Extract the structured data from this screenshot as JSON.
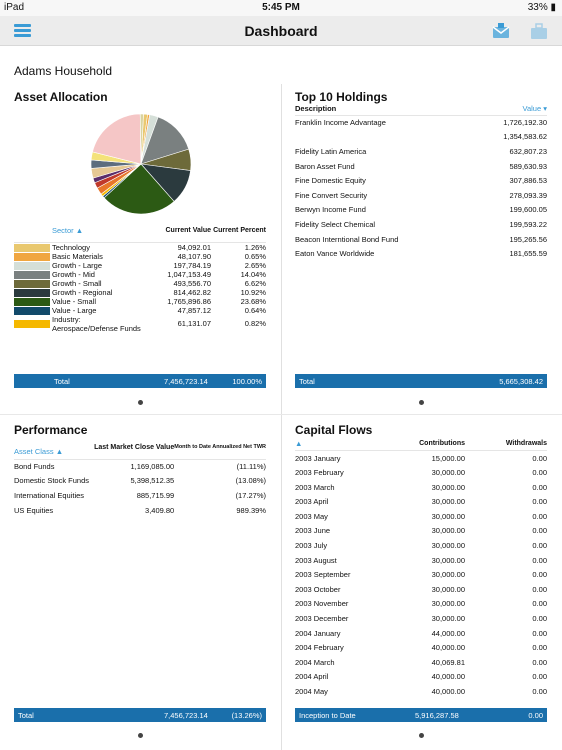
{
  "status": {
    "device": "iPad",
    "time": "5:45 PM",
    "battery": "33%"
  },
  "nav": {
    "title": "Dashboard"
  },
  "household": "Adams Household",
  "asset_allocation": {
    "title": "Asset Allocation",
    "col_sector": "Sector",
    "col_value": "Current Value",
    "col_percent": "Current Percent",
    "rows": [
      {
        "sector": "Technology",
        "value": "94,092.01",
        "percent": "1.26%",
        "color": "#e9c86f"
      },
      {
        "sector": "Basic Materials",
        "value": "48,107.90",
        "percent": "0.65%",
        "color": "#f0a640"
      },
      {
        "sector": "Growth - Large",
        "value": "197,784.19",
        "percent": "2.65%",
        "color": "#d5dfd8"
      },
      {
        "sector": "Growth - Mid",
        "value": "1,047,153.49",
        "percent": "14.04%",
        "color": "#7a8080"
      },
      {
        "sector": "Growth - Small",
        "value": "493,556.70",
        "percent": "6.62%",
        "color": "#6d6a3a"
      },
      {
        "sector": "Growth - Regional",
        "value": "814,462.82",
        "percent": "10.92%",
        "color": "#2b3a3e"
      },
      {
        "sector": "Value - Small",
        "value": "1,765,896.86",
        "percent": "23.68%",
        "color": "#2c5a14"
      },
      {
        "sector": "Value - Large",
        "value": "47,857.12",
        "percent": "0.64%",
        "color": "#124a6a"
      },
      {
        "sector": "Industry: Aerospace/Defense Funds",
        "value": "61,131.07",
        "percent": "0.82%",
        "color": "#f5b800"
      }
    ],
    "total_label": "Total",
    "total_value": "7,456,723.14",
    "total_percent": "100.00%"
  },
  "chart_data": {
    "type": "pie",
    "slices": [
      {
        "name": "Technology",
        "value": 1.26,
        "color": "#e9c86f"
      },
      {
        "name": "Basic Materials",
        "value": 0.65,
        "color": "#f0a640"
      },
      {
        "name": "Growth - Large",
        "value": 2.65,
        "color": "#d5dfd8"
      },
      {
        "name": "Growth - Mid",
        "value": 14.04,
        "color": "#7a8080"
      },
      {
        "name": "Growth - Small",
        "value": 6.62,
        "color": "#6d6a3a"
      },
      {
        "name": "Growth - Regional",
        "value": 10.92,
        "color": "#2b3a3e"
      },
      {
        "name": "Value - Small",
        "value": 23.68,
        "color": "#2c5a14"
      },
      {
        "name": "Value - Large",
        "value": 0.64,
        "color": "#124a6a"
      },
      {
        "name": "Industry: Aerospace/Defense Funds",
        "value": 0.82,
        "color": "#f5b800"
      },
      {
        "name": "other-orange",
        "value": 2.2,
        "color": "#e8762a"
      },
      {
        "name": "other-red",
        "value": 1.8,
        "color": "#c0392b"
      },
      {
        "name": "other-purple",
        "value": 1.5,
        "color": "#5a2d6a"
      },
      {
        "name": "other-tan",
        "value": 3.0,
        "color": "#e6c894"
      },
      {
        "name": "other-slate",
        "value": 2.6,
        "color": "#5d6d7e"
      },
      {
        "name": "other-yellow",
        "value": 2.5,
        "color": "#f4e27a"
      },
      {
        "name": "other-pink",
        "value": 20.0,
        "color": "#f5c6c6"
      },
      {
        "name": "other-cream",
        "value": 1.0,
        "color": "#d9d4a0"
      }
    ]
  },
  "holdings": {
    "title": "Top 10 Holdings",
    "col_desc": "Description",
    "col_value": "Value",
    "rows": [
      {
        "desc": "Franklin Income Advantage",
        "value": "1,726,192.30"
      },
      {
        "desc": "",
        "value": "1,354,583.62"
      },
      {
        "desc": "Fidelity Latin America",
        "value": "632,807.23"
      },
      {
        "desc": "Baron Asset Fund",
        "value": "589,630.93"
      },
      {
        "desc": "Fine Domestic Equity",
        "value": "307,886.53"
      },
      {
        "desc": "Fine Convert Security",
        "value": "278,093.39"
      },
      {
        "desc": "Berwyn Income Fund",
        "value": "199,600.05"
      },
      {
        "desc": "Fidelity Select Chemical",
        "value": "199,593.22"
      },
      {
        "desc": "Beacon Interntional Bond Fund",
        "value": "195,265.56"
      },
      {
        "desc": "Eaton Vance Worldwide",
        "value": "181,655.59"
      }
    ],
    "total_label": "Total",
    "total_value": "5,665,308.42"
  },
  "performance": {
    "title": "Performance",
    "col_class": "Asset Class",
    "col_close": "Last Market Close Value",
    "col_twr": "Month to Date Annualized Net TWR",
    "rows": [
      {
        "cls": "Bond Funds",
        "value": "1,169,085.00",
        "twr": "(11.11%)"
      },
      {
        "cls": "Domestic Stock Funds",
        "value": "5,398,512.35",
        "twr": "(13.08%)"
      },
      {
        "cls": "International Equities",
        "value": "885,715.99",
        "twr": "(17.27%)"
      },
      {
        "cls": "US Equities",
        "value": "3,409.80",
        "twr": "989.39%"
      }
    ],
    "total_label": "Total",
    "total_value": "7,456,723.14",
    "total_twr": "(13.26%)"
  },
  "capital_flows": {
    "title": "Capital Flows",
    "col_contrib": "Contributions",
    "col_withdraw": "Withdrawals",
    "rows": [
      {
        "period": "2003 January",
        "c": "15,000.00",
        "w": "0.00"
      },
      {
        "period": "2003 February",
        "c": "30,000.00",
        "w": "0.00"
      },
      {
        "period": "2003 March",
        "c": "30,000.00",
        "w": "0.00"
      },
      {
        "period": "2003 April",
        "c": "30,000.00",
        "w": "0.00"
      },
      {
        "period": "2003 May",
        "c": "30,000.00",
        "w": "0.00"
      },
      {
        "period": "2003 June",
        "c": "30,000.00",
        "w": "0.00"
      },
      {
        "period": "2003 July",
        "c": "30,000.00",
        "w": "0.00"
      },
      {
        "period": "2003 August",
        "c": "30,000.00",
        "w": "0.00"
      },
      {
        "period": "2003 September",
        "c": "30,000.00",
        "w": "0.00"
      },
      {
        "period": "2003 October",
        "c": "30,000.00",
        "w": "0.00"
      },
      {
        "period": "2003 November",
        "c": "30,000.00",
        "w": "0.00"
      },
      {
        "period": "2003 December",
        "c": "30,000.00",
        "w": "0.00"
      },
      {
        "period": "2004 January",
        "c": "44,000.00",
        "w": "0.00"
      },
      {
        "period": "2004 February",
        "c": "40,000.00",
        "w": "0.00"
      },
      {
        "period": "2004 March",
        "c": "40,069.81",
        "w": "0.00"
      },
      {
        "period": "2004 April",
        "c": "40,000.00",
        "w": "0.00"
      },
      {
        "period": "2004 May",
        "c": "40,000.00",
        "w": "0.00"
      }
    ],
    "total_label": "Inception to Date",
    "total_contrib": "5,916,287.58",
    "total_withdraw": "0.00"
  }
}
